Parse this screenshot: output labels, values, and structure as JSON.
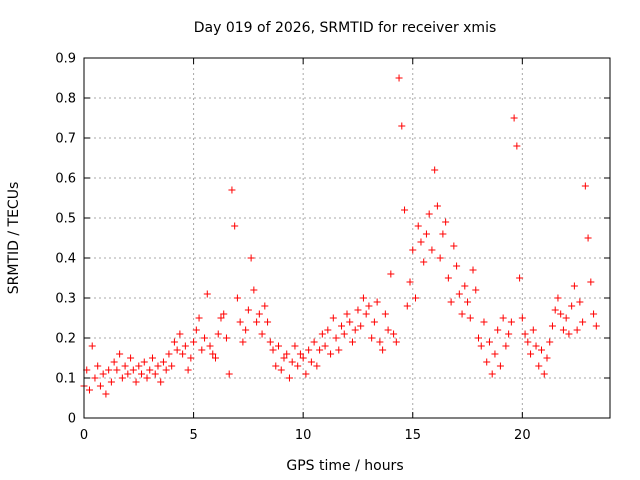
{
  "chart_data": {
    "type": "scatter",
    "title": "Day 019 of 2026, SRMTID for receiver xmis",
    "xlabel": "GPS time / hours",
    "ylabel": "SRMTID / TECUs",
    "xlim": [
      0,
      24
    ],
    "ylim": [
      0,
      0.9
    ],
    "grid": true,
    "marker": "+",
    "marker_color": "#ff0000",
    "x_ticks": [
      0,
      5,
      10,
      15,
      20
    ],
    "x_tick_labels": [
      "0",
      "5",
      "10",
      "15",
      "20"
    ],
    "y_ticks": [
      0,
      0.1,
      0.2,
      0.3,
      0.4,
      0.5,
      0.6,
      0.7,
      0.8,
      0.9
    ],
    "y_tick_labels": [
      "0",
      "0.1",
      "0.2",
      "0.3",
      "0.4",
      "0.5",
      "0.6",
      "0.7",
      "0.8",
      "0.9"
    ],
    "series": [
      {
        "name": "xmis",
        "x_start": 0.0,
        "x_step": 0.125,
        "y": [
          0.08,
          0.12,
          0.07,
          0.18,
          0.1,
          0.13,
          0.08,
          0.11,
          0.06,
          0.12,
          0.09,
          0.14,
          0.12,
          0.16,
          0.1,
          0.13,
          0.11,
          0.15,
          0.12,
          0.09,
          0.13,
          0.11,
          0.14,
          0.1,
          0.12,
          0.15,
          0.11,
          0.13,
          0.09,
          0.14,
          0.12,
          0.16,
          0.13,
          0.19,
          0.17,
          0.21,
          0.16,
          0.18,
          0.12,
          0.15,
          0.19,
          0.22,
          0.25,
          0.17,
          0.2,
          0.31,
          0.18,
          0.16,
          0.15,
          0.21,
          0.25,
          0.26,
          0.2,
          0.11,
          0.57,
          0.48,
          0.3,
          0.24,
          0.19,
          0.22,
          0.27,
          0.4,
          0.32,
          0.24,
          0.26,
          0.21,
          0.28,
          0.24,
          0.19,
          0.17,
          0.13,
          0.18,
          0.12,
          0.15,
          0.16,
          0.1,
          0.14,
          0.18,
          0.13,
          0.16,
          0.15,
          0.11,
          0.17,
          0.14,
          0.19,
          0.13,
          0.17,
          0.21,
          0.18,
          0.22,
          0.16,
          0.25,
          0.2,
          0.17,
          0.23,
          0.21,
          0.26,
          0.24,
          0.19,
          0.22,
          0.27,
          0.23,
          0.3,
          0.26,
          0.28,
          0.2,
          0.24,
          0.29,
          0.19,
          0.17,
          0.26,
          0.22,
          0.36,
          0.21,
          0.19,
          0.85,
          0.73,
          0.52,
          0.28,
          0.34,
          0.42,
          0.3,
          0.48,
          0.44,
          0.39,
          0.46,
          0.51,
          0.42,
          0.62,
          0.53,
          0.4,
          0.46,
          0.49,
          0.35,
          0.29,
          0.43,
          0.38,
          0.31,
          0.26,
          0.33,
          0.29,
          0.25,
          0.37,
          0.32,
          0.2,
          0.18,
          0.24,
          0.14,
          0.19,
          0.11,
          0.16,
          0.22,
          0.13,
          0.25,
          0.18,
          0.21,
          0.24,
          0.75,
          0.68,
          0.35,
          0.25,
          0.21,
          0.19,
          0.16,
          0.22,
          0.18,
          0.13,
          0.17,
          0.11,
          0.15,
          0.19,
          0.23,
          0.27,
          0.3,
          0.26,
          0.22,
          0.25,
          0.21,
          0.28,
          0.33,
          0.22,
          0.29,
          0.24,
          0.58,
          0.45,
          0.34,
          0.26,
          0.23
        ]
      }
    ]
  }
}
